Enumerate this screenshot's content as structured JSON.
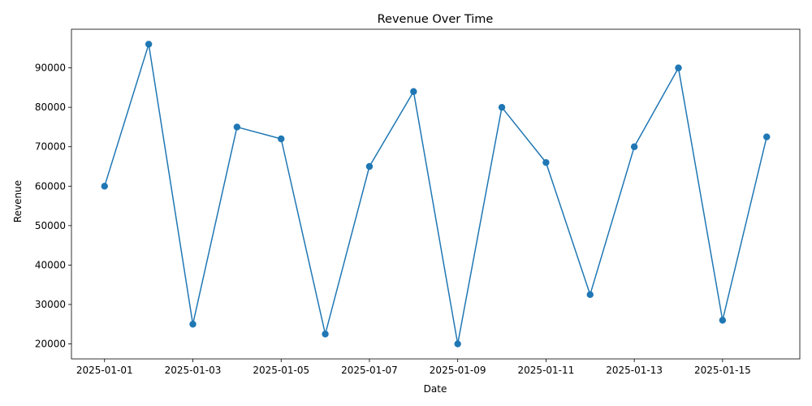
{
  "chart_data": {
    "type": "line",
    "title": "Revenue Over Time",
    "xlabel": "Date",
    "ylabel": "Revenue",
    "x": [
      "2025-01-01",
      "2025-01-02",
      "2025-01-03",
      "2025-01-04",
      "2025-01-05",
      "2025-01-06",
      "2025-01-07",
      "2025-01-08",
      "2025-01-09",
      "2025-01-10",
      "2025-01-11",
      "2025-01-12",
      "2025-01-13",
      "2025-01-14",
      "2025-01-15",
      "2025-01-16"
    ],
    "series": [
      {
        "name": "Revenue",
        "color": "#1f77b4",
        "marker": "circle",
        "values": [
          60000,
          96000,
          25000,
          75000,
          72000,
          22500,
          65000,
          84000,
          20000,
          80000,
          66000,
          32500,
          70000,
          90000,
          26000,
          72500
        ]
      }
    ],
    "x_tick_labels": [
      "2025-01-01",
      "2025-01-03",
      "2025-01-05",
      "2025-01-07",
      "2025-01-09",
      "2025-01-11",
      "2025-01-13",
      "2025-01-15"
    ],
    "y_ticks": [
      20000,
      30000,
      40000,
      50000,
      60000,
      70000,
      80000,
      90000
    ],
    "ylim": [
      16200,
      99800
    ],
    "grid": false,
    "legend": "none"
  }
}
